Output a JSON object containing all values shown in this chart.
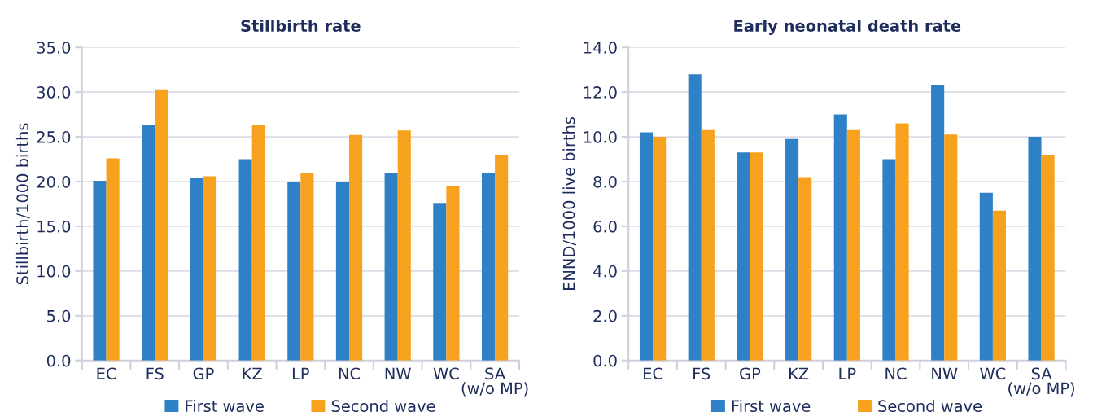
{
  "chart_data": [
    {
      "type": "bar",
      "title": "Stillbirth rate",
      "ylabel": "Stillbirth/1000 births",
      "categories": [
        "EC",
        "FS",
        "GP",
        "KZ",
        "LP",
        "NC",
        "NW",
        "WC",
        "SA\n(w/o MP)"
      ],
      "series": [
        {
          "name": "First wave",
          "color": "#2e81c6",
          "values": [
            20.1,
            26.3,
            20.4,
            22.5,
            19.9,
            20.0,
            21.0,
            17.6,
            20.9
          ]
        },
        {
          "name": "Second wave",
          "color": "#f7a21f",
          "values": [
            22.6,
            30.3,
            20.6,
            26.3,
            21.0,
            25.2,
            25.7,
            19.5,
            23.0
          ]
        }
      ],
      "ylim": [
        0,
        35
      ],
      "yticks": [
        {
          "value": 0,
          "label": "0.0"
        },
        {
          "value": 5,
          "label": "5.0"
        },
        {
          "value": 10,
          "label": "10.0"
        },
        {
          "value": 15,
          "label": "15.0"
        },
        {
          "value": 20,
          "label": "20.0"
        },
        {
          "value": 25,
          "label": "25.0"
        },
        {
          "value": 30,
          "label": "30.0"
        },
        {
          "value": 35,
          "label": "35.0"
        }
      ],
      "grid": "y",
      "legend": "bottom"
    },
    {
      "type": "bar",
      "title": "Early neonatal death rate",
      "ylabel": "ENND/1000 live births",
      "categories": [
        "EC",
        "FS",
        "GP",
        "KZ",
        "LP",
        "NC",
        "NW",
        "WC",
        "SA\n(w/o MP)"
      ],
      "series": [
        {
          "name": "First wave",
          "color": "#2e81c6",
          "values": [
            10.2,
            12.8,
            9.3,
            9.9,
            11.0,
            9.0,
            12.3,
            7.5,
            10.0
          ]
        },
        {
          "name": "Second wave",
          "color": "#f7a21f",
          "values": [
            10.0,
            10.3,
            9.3,
            8.2,
            10.3,
            10.6,
            10.1,
            6.7,
            9.2
          ]
        }
      ],
      "ylim": [
        0,
        14
      ],
      "yticks": [
        {
          "value": 0,
          "label": "0.0"
        },
        {
          "value": 2,
          "label": "2.0"
        },
        {
          "value": 4,
          "label": "4.0"
        },
        {
          "value": 6,
          "label": "6.0"
        },
        {
          "value": 8,
          "label": "8.0"
        },
        {
          "value": 10,
          "label": "10.0"
        },
        {
          "value": 12,
          "label": "12.0"
        },
        {
          "value": 14,
          "label": "14.0"
        }
      ],
      "grid": "y",
      "legend": "bottom"
    }
  ]
}
